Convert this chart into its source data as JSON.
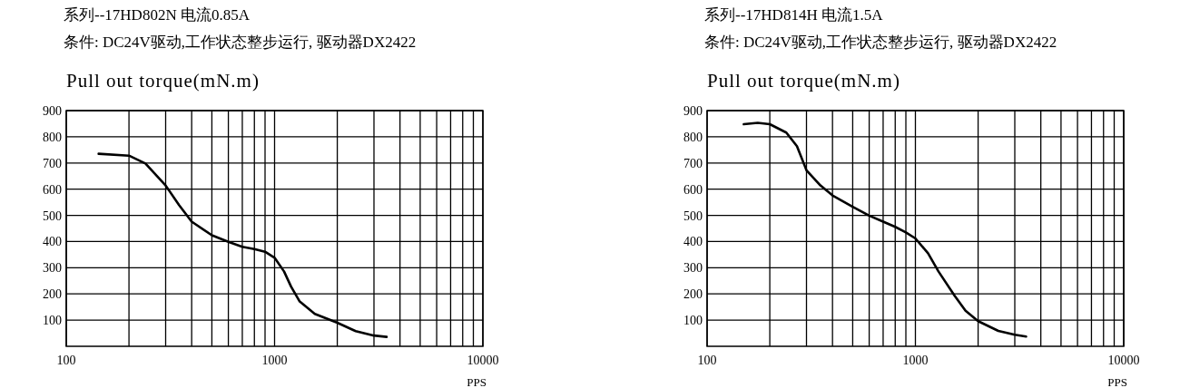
{
  "chart_data": [
    {
      "type": "line",
      "title": "系列--17HD802N 电流0.85A",
      "subtitle": "条件: DC24V驱动,工作状态整步运行, 驱动器DX2422",
      "ylabel": "Pull out torque(mN.m)",
      "xlabel": "PPS",
      "log": "x",
      "grid": true,
      "xlim": [
        100,
        10000
      ],
      "ylim": [
        0,
        900
      ],
      "xticks": [
        100,
        {
          "value": 200,
          "label": null
        },
        {
          "value": 300,
          "label": null
        },
        {
          "value": 400,
          "label": null
        },
        {
          "value": 500,
          "label": null
        },
        {
          "value": 600,
          "label": null
        },
        {
          "value": 700,
          "label": null
        },
        {
          "value": 800,
          "label": null
        },
        {
          "value": 900,
          "label": null
        },
        1000,
        {
          "value": 2000,
          "label": null
        },
        {
          "value": 3000,
          "label": null
        },
        {
          "value": 4000,
          "label": null
        },
        {
          "value": 5000,
          "label": null
        },
        {
          "value": 6000,
          "label": null
        },
        {
          "value": 7000,
          "label": null
        },
        {
          "value": 8000,
          "label": null
        },
        {
          "value": 9000,
          "label": null
        },
        10000
      ],
      "yticks": [
        100,
        200,
        300,
        400,
        500,
        600,
        700,
        800,
        900
      ],
      "series": [
        {
          "color": "#000000",
          "x": [
            143,
            200,
            240,
            300,
            348,
            400,
            500,
            600,
            700,
            800,
            900,
            1000,
            1110,
            1200,
            1320,
            1560,
            2000,
            2450,
            3000,
            3450
          ],
          "values": [
            735,
            728,
            698,
            614,
            539,
            476,
            424,
            399,
            380,
            371,
            361,
            338,
            286,
            228,
            171,
            124,
            90,
            58,
            41,
            36
          ]
        }
      ]
    },
    {
      "type": "line",
      "title": "系列--17HD814H 电流1.5A",
      "subtitle": "条件: DC24V驱动,工作状态整步运行, 驱动器DX2422",
      "ylabel": "Pull out torque(mN.m)",
      "xlabel": "PPS",
      "log": "x",
      "grid": true,
      "xlim": [
        100,
        10000
      ],
      "ylim": [
        0,
        900
      ],
      "xticks": [
        100,
        {
          "value": 200,
          "label": null
        },
        {
          "value": 300,
          "label": null
        },
        {
          "value": 400,
          "label": null
        },
        {
          "value": 500,
          "label": null
        },
        {
          "value": 600,
          "label": null
        },
        {
          "value": 700,
          "label": null
        },
        {
          "value": 800,
          "label": null
        },
        {
          "value": 900,
          "label": null
        },
        1000,
        {
          "value": 2000,
          "label": null
        },
        {
          "value": 3000,
          "label": null
        },
        {
          "value": 4000,
          "label": null
        },
        {
          "value": 5000,
          "label": null
        },
        {
          "value": 6000,
          "label": null
        },
        {
          "value": 7000,
          "label": null
        },
        {
          "value": 8000,
          "label": null
        },
        {
          "value": 9000,
          "label": null
        },
        10000
      ],
      "yticks": [
        100,
        200,
        300,
        400,
        500,
        600,
        700,
        800,
        900
      ],
      "series": [
        {
          "color": "#000000",
          "x": [
            150,
            175,
            200,
            240,
            270,
            300,
            350,
            400,
            500,
            600,
            700,
            800,
            900,
            1000,
            1150,
            1290,
            1540,
            1740,
            2000,
            2500,
            3000,
            3400
          ],
          "values": [
            848,
            853,
            848,
            816,
            764,
            672,
            614,
            576,
            533,
            499,
            476,
            456,
            435,
            412,
            355,
            286,
            194,
            136,
            96,
            59,
            44,
            37
          ]
        }
      ]
    }
  ]
}
